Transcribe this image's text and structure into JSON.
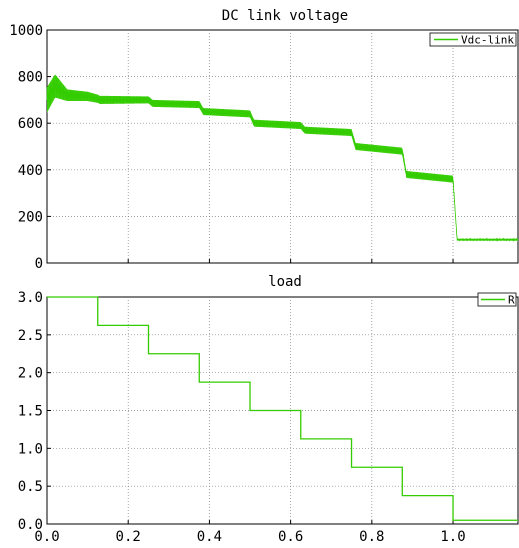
{
  "chart_data": [
    {
      "type": "line",
      "title": "DC link voltage",
      "xlabel": "",
      "ylabel": "",
      "xlim": [
        0,
        1.16
      ],
      "ylim": [
        0,
        1000
      ],
      "yticks": [
        "0",
        "200",
        "400",
        "600",
        "800",
        "1000"
      ],
      "grid": true,
      "legend": "top-right",
      "series": [
        {
          "name": "Vdc-link",
          "color": "#33cc00",
          "x": [
            0.0,
            0.02,
            0.05,
            0.1,
            0.125,
            0.13,
            0.25,
            0.26,
            0.375,
            0.385,
            0.5,
            0.51,
            0.625,
            0.635,
            0.75,
            0.76,
            0.875,
            0.885,
            1.0,
            1.01,
            1.16
          ],
          "y": [
            700,
            760,
            720,
            715,
            705,
            700,
            700,
            685,
            680,
            650,
            640,
            600,
            590,
            570,
            560,
            500,
            480,
            380,
            360,
            100,
            100
          ],
          "ripple": [
            110,
            100,
            50,
            40,
            35,
            35,
            30,
            30,
            30,
            30,
            30,
            30,
            30,
            30,
            30,
            30,
            30,
            30,
            30,
            8,
            8
          ]
        }
      ]
    },
    {
      "type": "line",
      "title": "load",
      "xlabel": "",
      "ylabel": "",
      "xlim": [
        0,
        1.16
      ],
      "ylim": [
        0,
        3.0
      ],
      "xticks": [
        "0.0",
        "0.2",
        "0.4",
        "0.6",
        "0.8",
        "1.0"
      ],
      "yticks": [
        "0.0",
        "0.5",
        "1.0",
        "1.5",
        "2.0",
        "2.5",
        "3.0"
      ],
      "grid": true,
      "legend": "top-right",
      "series": [
        {
          "name": "R",
          "color": "#33cc00",
          "x": [
            0.0,
            0.125,
            0.25,
            0.375,
            0.5,
            0.625,
            0.75,
            0.875,
            1.0,
            1.16
          ],
          "y": [
            3.0,
            2.625,
            2.25,
            1.875,
            1.5,
            1.125,
            0.75,
            0.375,
            0.05,
            0.05
          ]
        }
      ]
    }
  ]
}
